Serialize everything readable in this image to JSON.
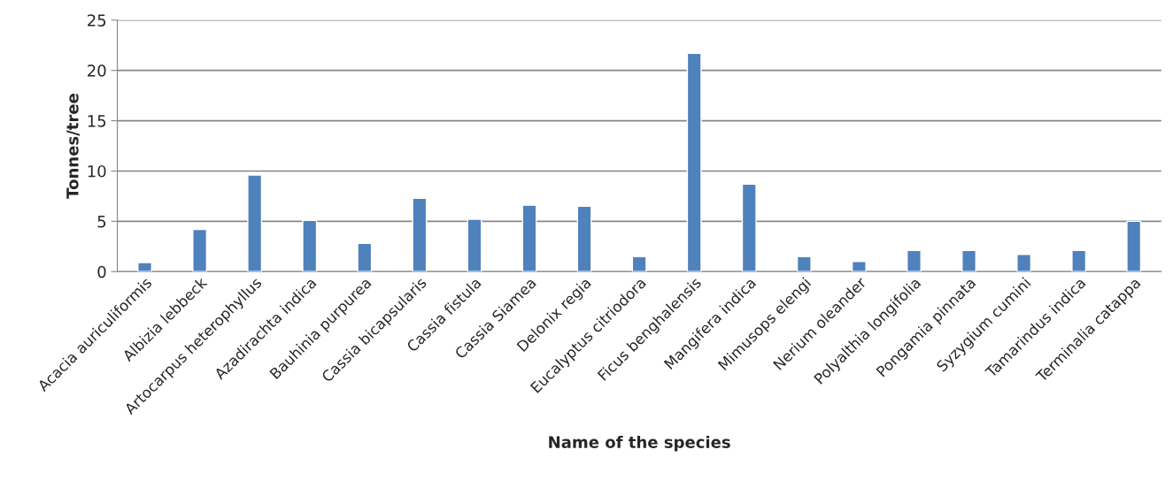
{
  "chart_data": {
    "type": "bar",
    "xlabel": "Name of the species",
    "ylabel": "Tonnes/tree",
    "categories": [
      "Acacia auriculiformis",
      "Albizia lebbeck",
      "Artocarpus heterophyllus",
      "Azadirachta indica",
      "Bauhinia purpurea",
      "Cassia bicapsularis",
      "Cassia fistula",
      "Cassia Siamea",
      "Delonix regia",
      "Eucalyptus citriodora",
      "Ficus benghalensis",
      "Mangifera indica",
      "Mimusops elengi",
      "Nerium oleander",
      "Polyalthia longifolia",
      "Pongamia pinnata",
      "Syzygium cumini",
      "Tamarindus indica",
      "Terminalia catappa"
    ],
    "values": [
      0.9,
      4.2,
      9.6,
      5.1,
      2.8,
      7.3,
      5.2,
      6.6,
      6.5,
      1.5,
      21.7,
      8.7,
      1.5,
      1.0,
      2.1,
      2.1,
      1.7,
      2.1,
      5.0
    ],
    "color": "#4f81bd",
    "ylim": [
      0,
      25
    ],
    "yticks": [
      0,
      5,
      10,
      15,
      20,
      25
    ],
    "grid": "y"
  }
}
